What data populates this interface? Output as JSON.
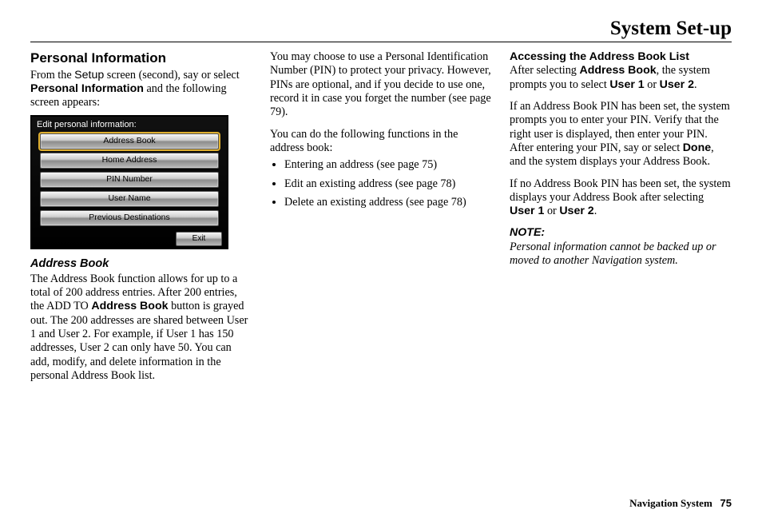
{
  "page_title": "System Set-up",
  "footer": {
    "label": "Navigation System",
    "page_number": "75"
  },
  "col1": {
    "heading": "Personal Information",
    "intro_parts": {
      "t1": "From the ",
      "setup": "Setup",
      "t2": " screen (second), say or select ",
      "bold": "Personal Information",
      "t3": " and the following screen appears:"
    },
    "device": {
      "title": "Edit personal information:",
      "buttons": [
        "Address Book",
        "Home Address",
        "PIN Number",
        "User Name",
        "Previous Destinations"
      ],
      "exit": "Exit"
    },
    "subheading": "Address Book",
    "body_parts": {
      "t1": "The Address Book function allows for up to a total of 200 address entries. After 200 entries, the ADD TO ",
      "bold": "Address Book",
      "t2": " button is grayed out. The 200 addresses are shared between User 1 and User 2. For example, if User 1 has 150 addresses, User 2 can only have 50. You can add, modify, and delete information in the personal Address Book list."
    }
  },
  "col2": {
    "p1": "You may choose to use a Personal Identification Number (PIN) to protect your privacy. However, PINs are optional, and if you decide to use one, record it in case you forget the number (see page 79).",
    "p2": "You can do the following functions in the address book:",
    "bullets": [
      "Entering an address (see page 75)",
      "Edit an existing address (see page 78)",
      "Delete an existing address (see page 78)"
    ]
  },
  "col3": {
    "p1_parts": {
      "bold1": "Accessing the Address Book List",
      "t1": "After selecting ",
      "bold2": "Address Book",
      "t2": ", the system prompts you to select ",
      "bold3": "User 1",
      "t3": " or ",
      "bold4": "User 2",
      "t4": "."
    },
    "p2_parts": {
      "t1": "If an Address Book PIN has been set, the system prompts you to enter your PIN. Verify that the right user is displayed, then enter your PIN. After entering your PIN, say or select ",
      "bold1": "Done",
      "t2": ", and the system displays your Address Book."
    },
    "p3_parts": {
      "t1": "If no Address Book PIN has been set, the system displays your Address Book after selecting ",
      "bold1": "User 1",
      "t2": " or ",
      "bold2": "User 2",
      "t3": "."
    },
    "note_label": "NOTE:",
    "note_body": "Personal information cannot be backed up or moved to another Navigation system."
  }
}
